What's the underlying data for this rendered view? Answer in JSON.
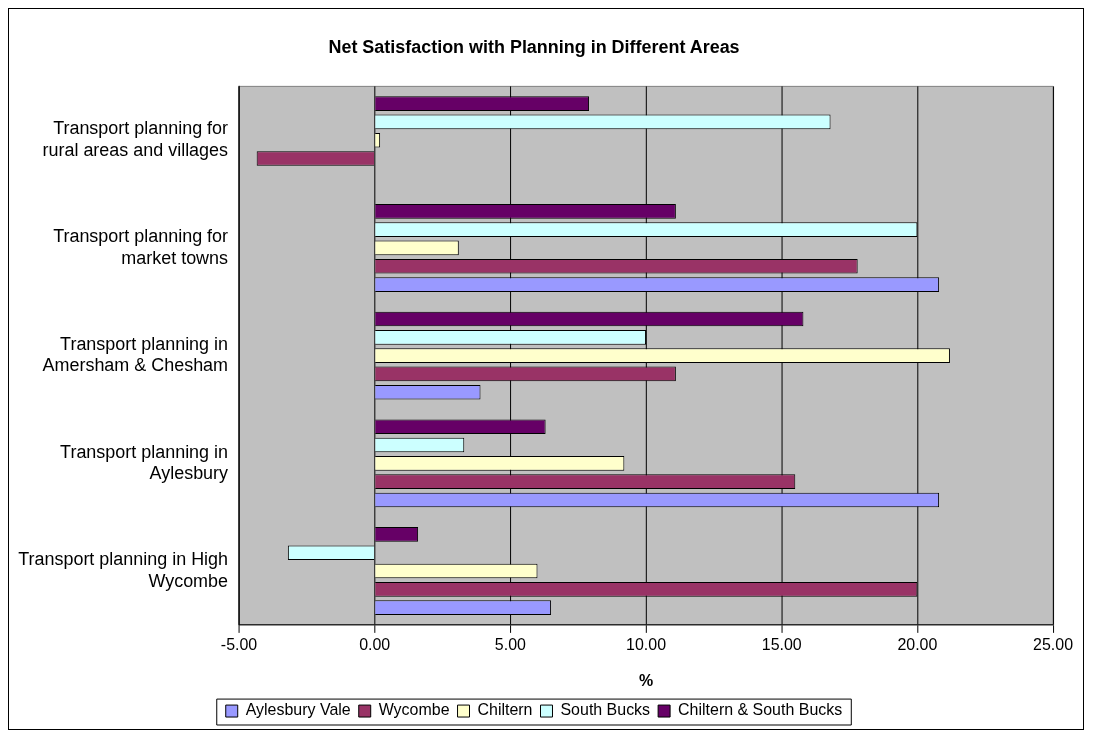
{
  "chart_data": {
    "type": "bar",
    "orientation": "horizontal",
    "title": "Net Satisfaction with Planning in Different Areas",
    "xlabel": "%",
    "categories": [
      "Transport planning for rural areas and villages",
      "Transport planning for market towns",
      "Transport planning in Amersham & Chesham",
      "Transport planning in Aylesbury",
      "Transport planning in High Wycombe"
    ],
    "series": [
      {
        "name": "Aylesbury Vale",
        "color": "#9999ff",
        "values": [
          0,
          20.8,
          3.9,
          20.8,
          6.5
        ]
      },
      {
        "name": "Wycombe",
        "color": "#993366",
        "values": [
          -4.35,
          17.8,
          11.1,
          15.5,
          20.0
        ]
      },
      {
        "name": "Chiltern",
        "color": "#ffffcc",
        "values": [
          0.2,
          3.1,
          21.2,
          9.2,
          6.0
        ]
      },
      {
        "name": "South Bucks",
        "color": "#ccffff",
        "values": [
          16.8,
          20.0,
          10.0,
          3.3,
          -3.2
        ]
      },
      {
        "name": "Chiltern & South Bucks",
        "color": "#660066",
        "values": [
          7.9,
          11.1,
          15.8,
          6.3,
          1.6
        ]
      }
    ],
    "xlim": [
      -5,
      25
    ],
    "xticks": [
      {
        "value": -5,
        "label": "-5.00"
      },
      {
        "value": 0,
        "label": "0.00"
      },
      {
        "value": 5,
        "label": "5.00"
      },
      {
        "value": 10,
        "label": "10.00"
      },
      {
        "value": 15,
        "label": "15.00"
      },
      {
        "value": 20,
        "label": "20.00"
      },
      {
        "value": 25,
        "label": "25.00"
      }
    ],
    "grid": "x",
    "legend": "bottom"
  }
}
